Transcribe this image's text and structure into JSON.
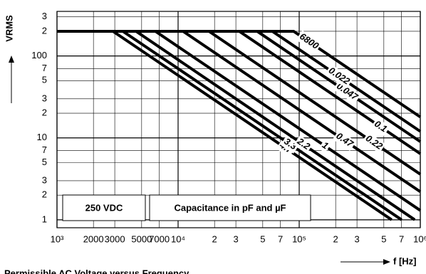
{
  "chart_data": {
    "type": "line",
    "y_label": "VRMS",
    "x_label": "f [Hz]",
    "caption": "Permissible AC Voltage versus Frequency",
    "notes": [
      "250 VDC",
      "Capacitance in pF and µF"
    ],
    "log_x": true,
    "log_y": true,
    "grid": true,
    "color": "#000000",
    "xlim": [
      1000,
      1000000
    ],
    "ylim": [
      0.8,
      350
    ],
    "xticks": [
      {
        "value": 1000,
        "label": "10³"
      },
      2000,
      3000,
      5000,
      7000,
      {
        "value": 10000,
        "label": "10⁴"
      },
      {
        "value": 20000,
        "label": "2"
      },
      {
        "value": 30000,
        "label": "3"
      },
      {
        "value": 50000,
        "label": "5"
      },
      {
        "value": 70000,
        "label": "7"
      },
      {
        "value": 100000,
        "label": "10⁵"
      },
      {
        "value": 200000,
        "label": "2"
      },
      {
        "value": 300000,
        "label": "3"
      },
      {
        "value": 500000,
        "label": "5"
      },
      {
        "value": 700000,
        "label": "7"
      },
      {
        "value": 1000000,
        "label": "10⁶"
      }
    ],
    "yticks": [
      1,
      2,
      3,
      5,
      7,
      10,
      {
        "value": 20,
        "label": "2"
      },
      {
        "value": 30,
        "label": "3"
      },
      {
        "value": 50,
        "label": "5"
      },
      {
        "value": 70,
        "label": "7"
      },
      100,
      {
        "value": 200,
        "label": "2"
      },
      {
        "value": 300,
        "label": "3"
      }
    ],
    "series": [
      {
        "name": "4.7",
        "x": [
          1000,
          2900,
          580000
        ],
        "values": [
          200,
          200,
          1
        ]
      },
      {
        "name": "3.3",
        "x": [
          1000,
          3500,
          700000
        ],
        "values": [
          200,
          200,
          1
        ]
      },
      {
        "name": "2.2",
        "x": [
          1000,
          4500,
          900000
        ],
        "values": [
          200,
          200,
          1
        ]
      },
      {
        "name": "1",
        "x": [
          1000,
          6500,
          1000000
        ],
        "values": [
          200,
          200,
          1.3
        ]
      },
      {
        "name": "0.47",
        "x": [
          1000,
          11000,
          1000000
        ],
        "values": [
          200,
          200,
          2.2
        ]
      },
      {
        "name": "0.22",
        "x": [
          1000,
          18000,
          1000000
        ],
        "values": [
          200,
          200,
          3.6
        ]
      },
      {
        "name": "0.1",
        "x": [
          1000,
          32000,
          1000000
        ],
        "values": [
          200,
          200,
          6.4
        ]
      },
      {
        "name": "0.047",
        "x": [
          1000,
          45000,
          1000000
        ],
        "values": [
          200,
          200,
          9
        ]
      },
      {
        "name": "0.022",
        "x": [
          1000,
          60000,
          1000000
        ],
        "values": [
          200,
          200,
          12
        ]
      },
      {
        "name": "6800",
        "x": [
          1000,
          90000,
          1000000
        ],
        "values": [
          200,
          200,
          18
        ]
      }
    ]
  }
}
